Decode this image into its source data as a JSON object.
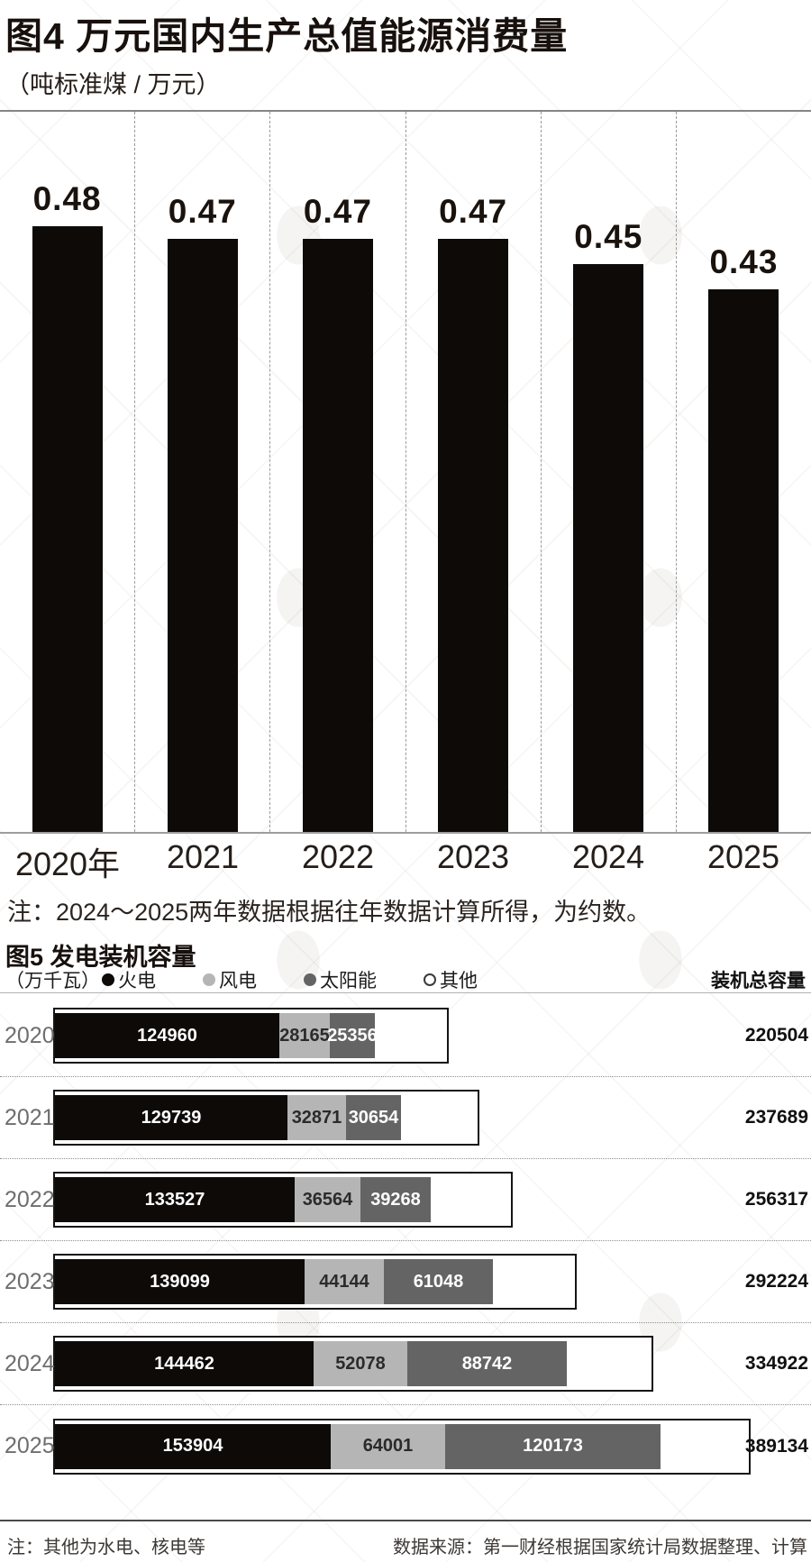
{
  "fig4": {
    "title": "图4 万元国内生产总值能源消费量",
    "unit": "（吨标准煤 / 万元）",
    "note": "注：2024～2025两年数据根据往年数据计算所得，为约数。"
  },
  "fig5": {
    "title": "图5 发电装机容量",
    "unit": "（万千瓦）",
    "total_header": "装机总容量",
    "legend": [
      {
        "label": "火电",
        "color": "#0d0a08",
        "filled": true
      },
      {
        "label": "风电",
        "color": "#b5b5b5",
        "filled": true
      },
      {
        "label": "太阳能",
        "color": "#646464",
        "filled": true
      },
      {
        "label": "其他",
        "color": "#ffffff",
        "filled": false
      }
    ],
    "note_left": "注：其他为水电、核电等",
    "note_right": "数据来源：第一财经根据国家统计局数据整理、计算"
  },
  "chart_data": [
    {
      "type": "bar",
      "title": "图4 万元国内生产总值能源消费量",
      "ylabel": "吨标准煤/万元",
      "categories": [
        "2020年",
        "2021",
        "2022",
        "2023",
        "2024",
        "2025"
      ],
      "values": [
        0.48,
        0.47,
        0.47,
        0.47,
        0.45,
        0.43
      ],
      "ylim": [
        0,
        0.57
      ],
      "grid": "dashed-vertical-separators",
      "legend_position": "none",
      "note": "注：2024～2025两年数据根据往年数据计算所得，为约数。"
    },
    {
      "type": "bar",
      "orientation": "horizontal-stacked",
      "title": "图5 发电装机容量",
      "xlabel": "万千瓦",
      "categories": [
        "2020",
        "2021",
        "2022",
        "2023",
        "2024",
        "2025"
      ],
      "series": [
        {
          "name": "火电",
          "color": "#0d0a08",
          "label_color": "#ffffff",
          "values": [
            124960,
            129739,
            133527,
            139099,
            144462,
            153904
          ]
        },
        {
          "name": "风电",
          "color": "#b5b5b5",
          "label_color": "#2b2b2b",
          "values": [
            28165,
            32871,
            36564,
            44144,
            52078,
            64001
          ]
        },
        {
          "name": "太阳能",
          "color": "#646464",
          "label_color": "#ffffff",
          "values": [
            25356,
            30654,
            39268,
            61048,
            88742,
            120173
          ]
        },
        {
          "name": "其他",
          "color": "#ffffff",
          "remainder": true
        }
      ],
      "totals": [
        220504,
        237689,
        256317,
        292224,
        334922,
        389134
      ],
      "totals_label": "装机总容量",
      "xlim": [
        0,
        389134
      ],
      "legend_position": "top"
    }
  ]
}
